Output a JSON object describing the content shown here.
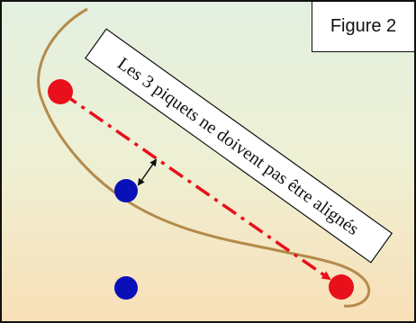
{
  "figure": {
    "label": "Figure 2"
  },
  "caption": "Les 3 piquets ne doivent pas être alignés",
  "colors": {
    "curve": "#b58a4a",
    "red_stake": "#e8101a",
    "blue_stake": "#0a10b8",
    "dashed_line": "#e8101a",
    "background_top": "#e3f0e0",
    "background_bottom": "#f9e0b8"
  }
}
